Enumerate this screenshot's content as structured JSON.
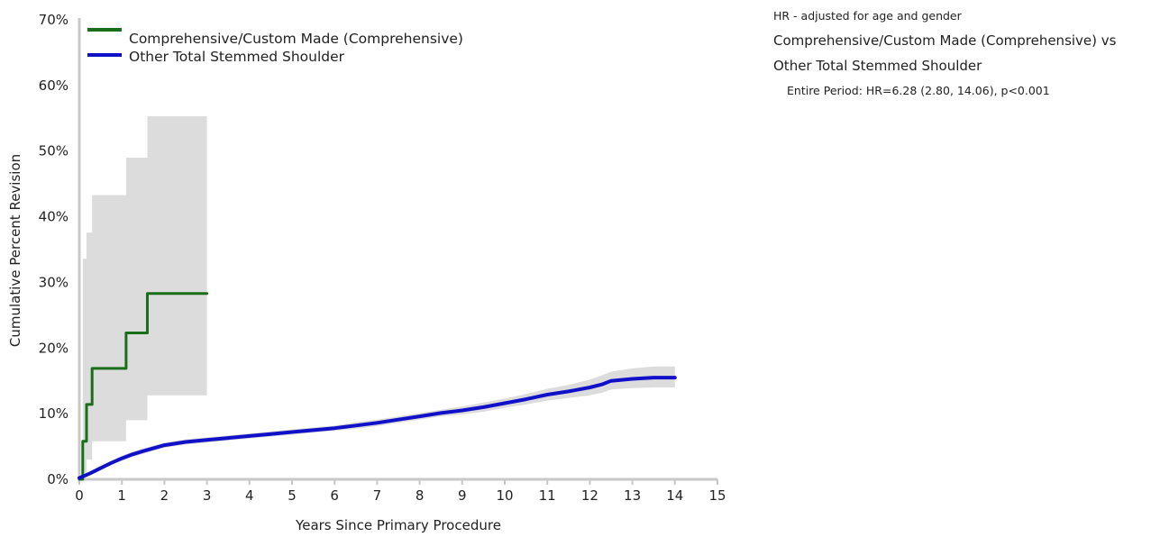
{
  "chart_data": {
    "type": "line",
    "title": "",
    "xlabel": "Years Since Primary Procedure",
    "ylabel": "Cumulative Percent Revision",
    "xlim": [
      0,
      15
    ],
    "ylim": [
      0,
      70
    ],
    "x_ticks": [
      "0",
      "1",
      "2",
      "3",
      "4",
      "5",
      "6",
      "7",
      "8",
      "9",
      "10",
      "11",
      "12",
      "13",
      "14",
      "15"
    ],
    "y_ticks": [
      "0%",
      "10%",
      "20%",
      "30%",
      "40%",
      "50%",
      "60%",
      "70%"
    ],
    "grid": false,
    "legend_position": "top-left",
    "series": [
      {
        "name": "Comprehensive/Custom Made (Comprehensive)",
        "color": "#1a6e1a",
        "step": true,
        "x": [
          0,
          0.08,
          0.17,
          0.3,
          1.1,
          1.6,
          3.0
        ],
        "y": [
          0,
          5.8,
          11.4,
          16.9,
          22.3,
          28.3,
          28.3
        ],
        "ci_upper": [
          0,
          33.6,
          37.6,
          43.3,
          49.0,
          55.3,
          55.3
        ],
        "ci_lower": [
          0,
          1.0,
          3.0,
          5.8,
          9.0,
          12.8,
          12.8
        ]
      },
      {
        "name": "Other Total Stemmed Shoulder",
        "color": "#1010c8",
        "step": false,
        "x": [
          0,
          0.25,
          0.5,
          0.75,
          1,
          1.25,
          1.5,
          2,
          2.5,
          3,
          3.5,
          4,
          4.5,
          5,
          5.5,
          6,
          6.5,
          7,
          7.5,
          8,
          8.5,
          9,
          9.5,
          10,
          10.5,
          11,
          11.5,
          12,
          12.3,
          12.5,
          13,
          13.5,
          14
        ],
        "y": [
          0.2,
          0.9,
          1.7,
          2.5,
          3.2,
          3.8,
          4.3,
          5.2,
          5.7,
          6.0,
          6.3,
          6.6,
          6.9,
          7.2,
          7.5,
          7.8,
          8.2,
          8.6,
          9.1,
          9.6,
          10.1,
          10.5,
          11.0,
          11.6,
          12.2,
          12.9,
          13.4,
          14.0,
          14.5,
          15.0,
          15.3,
          15.5,
          15.5
        ],
        "ci_upper": [
          0.4,
          1.2,
          2.0,
          2.8,
          3.6,
          4.2,
          4.7,
          5.6,
          6.1,
          6.4,
          6.7,
          7.0,
          7.3,
          7.6,
          7.9,
          8.2,
          8.7,
          9.1,
          9.6,
          10.1,
          10.6,
          11.1,
          11.7,
          12.3,
          13.0,
          13.8,
          14.4,
          15.2,
          15.9,
          16.4,
          16.9,
          17.2,
          17.2
        ],
        "ci_lower": [
          0.0,
          0.6,
          1.4,
          2.2,
          2.8,
          3.4,
          3.9,
          4.8,
          5.3,
          5.6,
          5.9,
          6.2,
          6.5,
          6.8,
          7.1,
          7.4,
          7.7,
          8.1,
          8.6,
          9.1,
          9.6,
          9.9,
          10.3,
          10.9,
          11.4,
          12.0,
          12.4,
          12.8,
          13.2,
          13.7,
          13.9,
          14.0,
          14.0
        ]
      }
    ]
  },
  "hr_panel": {
    "title": "HR - adjusted for age and gender",
    "comparison_line1": "Comprehensive/Custom Made (Comprehensive) vs",
    "comparison_line2": "Other Total Stemmed Shoulder",
    "period_text": "Entire Period: HR=6.28 (2.80, 14.06), p<0.001"
  },
  "colors": {
    "ci_band": "#dcdcdc",
    "axis": "#c8c8c8"
  }
}
